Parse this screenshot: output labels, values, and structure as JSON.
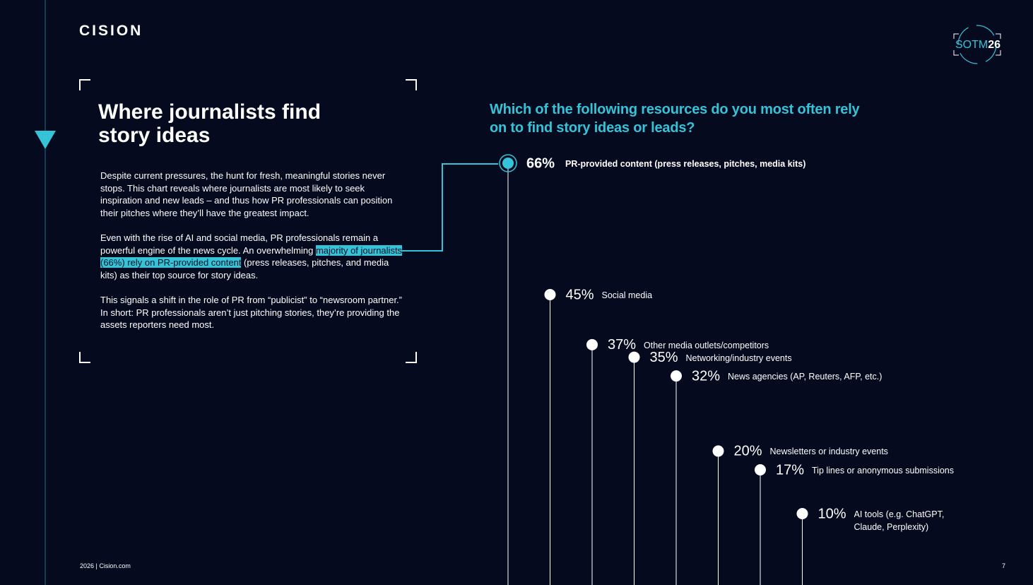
{
  "header": {
    "logo": "CISION",
    "badge_prefix": "SOTM",
    "badge_suffix": "26"
  },
  "intro": {
    "title": "Where journalists find story ideas",
    "paragraphs": [
      "Despite current pressures, the hunt for fresh, meaningful stories never stops. This chart reveals where journalists are most likely to seek inspiration and new leads – and thus how PR professionals can position their pitches where they’ll have the greatest impact.",
      {
        "before": "Even with the rise of AI and social media, PR professionals remain a powerful engine of the news cycle. An overwhelming ",
        "highlight": "majority of journalists (66%) rely on PR-provided content",
        "after": " (press releases, pitches, and media kits) as their top source for story ideas."
      },
      "This signals a shift in the role of PR from “publicist” to “newsroom partner.” In short: PR professionals aren’t just pitching stories, they’re providing the assets reporters need most."
    ]
  },
  "chart_data": {
    "type": "lollipop",
    "title": "Which of the following resources do you most often rely on to find story ideas or leads?",
    "categories": [
      "PR-provided content (press releases, pitches, media kits)",
      "Social media",
      "Other media outlets/competitors",
      "Networking/industry events",
      "News agencies (AP, Reuters, AFP, etc.)",
      "Newsletters or industry events",
      "Tip lines or anonymous submissions",
      "AI tools (e.g. ChatGPT, Claude, Perplexity)"
    ],
    "values": [
      66,
      45,
      37,
      35,
      32,
      20,
      17,
      10
    ],
    "value_labels": [
      "66%",
      "45%",
      "37%",
      "35%",
      "32%",
      "20%",
      "17%",
      "10%"
    ],
    "color": "#ffffff",
    "highlight_color": "#35c3d8"
  },
  "footer": {
    "source": "2026 | Cision.com",
    "page": 7
  }
}
